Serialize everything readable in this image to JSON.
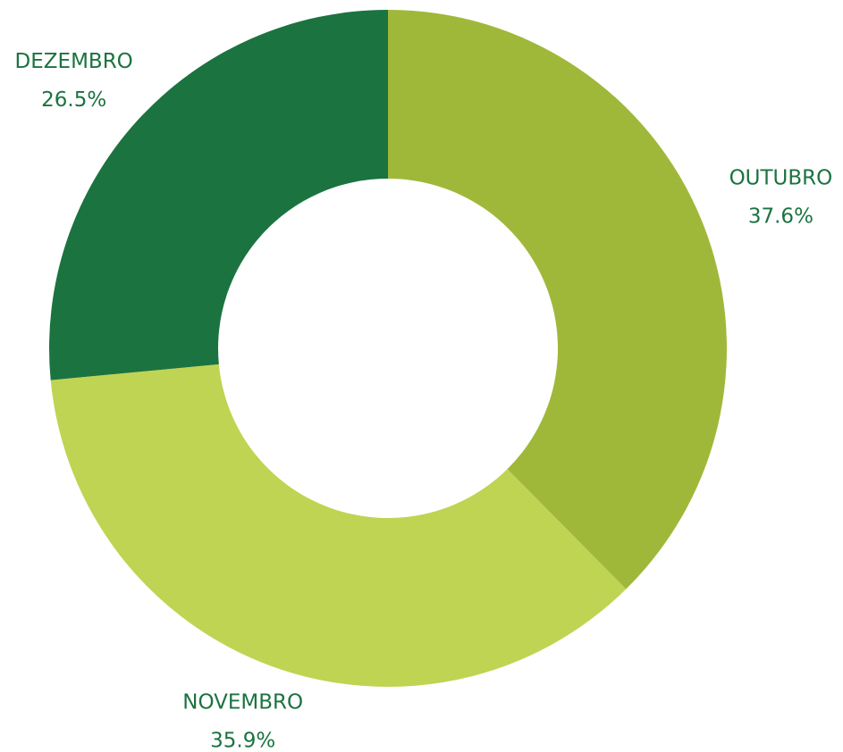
{
  "chart_data": {
    "type": "donut",
    "categories": [
      "OUTUBRO",
      "NOVEMBRO",
      "DEZEMBRO"
    ],
    "values": [
      37.6,
      35.9,
      26.5
    ],
    "value_labels": [
      "37.6%",
      "35.9%",
      "26.5%"
    ],
    "colors": [
      "#9fb83a",
      "#bfd452",
      "#1b7340"
    ]
  }
}
